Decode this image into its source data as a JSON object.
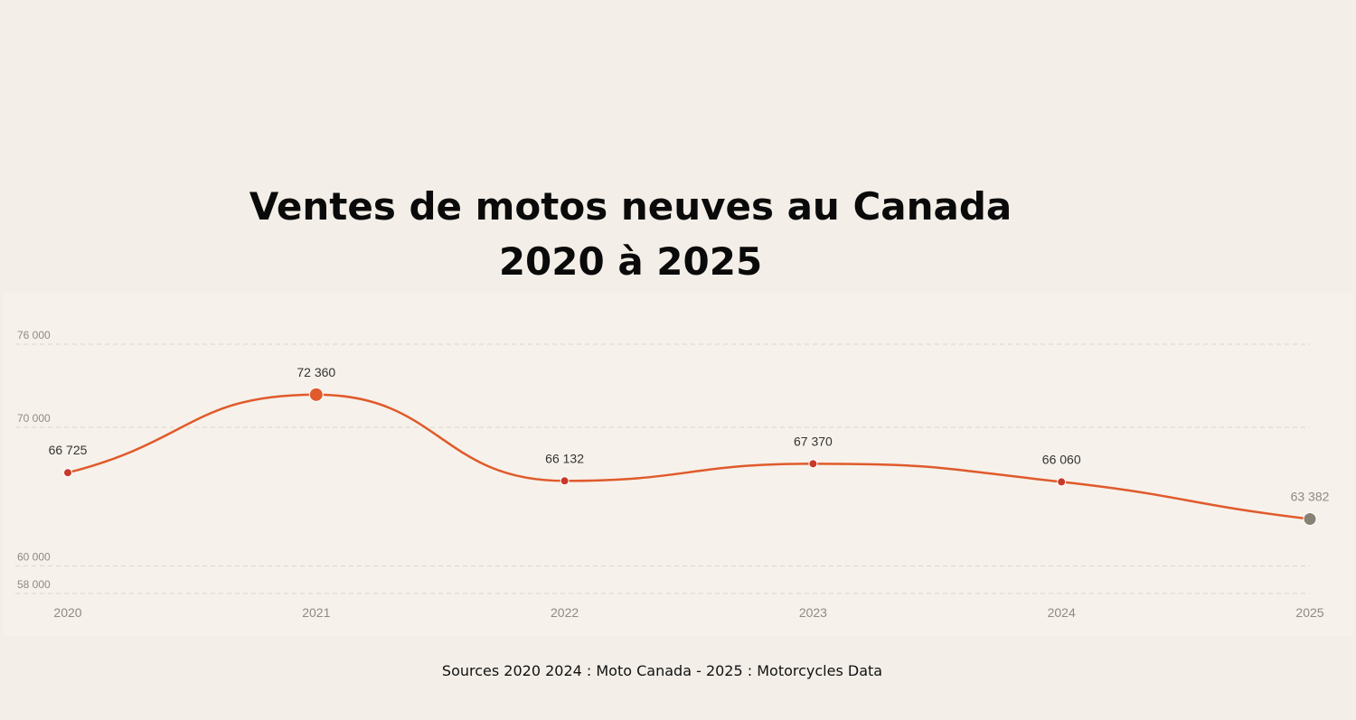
{
  "title_line1": "Ventes de motos neuves au Canada",
  "title_line2": "2020 à 2025",
  "source": "Sources 2020 2024 : Moto Canada  - 2025 : Motorcycles Data",
  "colors": {
    "line": "#e05a2b",
    "point": "#c8382b",
    "highlight": "#e05a2b",
    "last_point": "#8a8175",
    "grid": "#dcd6cc",
    "axis_text": "#8f8a84",
    "label_text": "#333333"
  },
  "chart_data": {
    "type": "line",
    "title": "Ventes de motos neuves au Canada 2020 à 2025",
    "x": [
      "2020",
      "2021",
      "2022",
      "2023",
      "2024",
      "2025"
    ],
    "values": [
      66725,
      72360,
      66132,
      67370,
      66060,
      63382
    ],
    "value_labels": [
      "66 725",
      "72 360",
      "66 132",
      "67 370",
      "66 060",
      "63 382"
    ],
    "yticks": [
      58000,
      60000,
      70000,
      76000
    ],
    "ytick_labels": [
      "58 000",
      "60 000",
      "70 000",
      "76 000"
    ],
    "ylim": [
      58000,
      76000
    ],
    "grid": true,
    "highlight_index": 1,
    "last_index": 5
  }
}
